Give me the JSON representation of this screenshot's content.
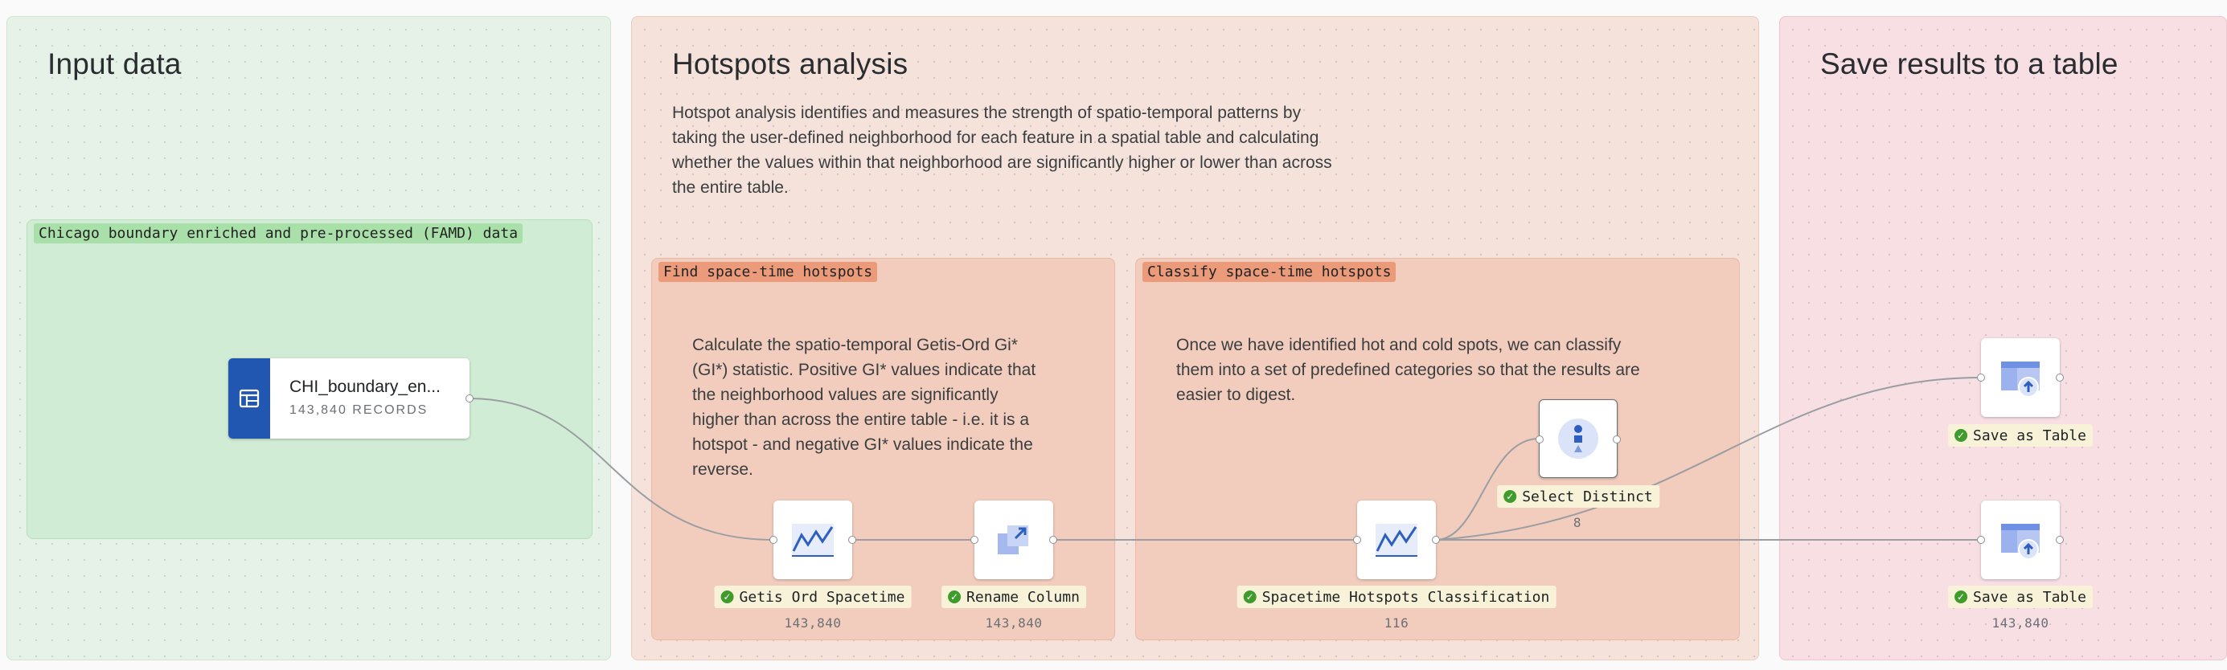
{
  "sections": {
    "input": {
      "title": "Input data"
    },
    "hotspots": {
      "title": "Hotspots analysis",
      "description": [
        "Hotspot analysis identifies and measures the strength of spatio-temporal patterns by",
        "taking the user-defined neighborhood for each feature in a spatial table and calculating",
        "whether the values within that neighborhood are significantly higher or lower than across",
        "the entire table."
      ]
    },
    "save": {
      "title": "Save results to a table"
    }
  },
  "groups": {
    "chicago": {
      "label": "Chicago boundary enriched and pre-processed (FAMD) data"
    },
    "find": {
      "label": "Find space-time hotspots",
      "description": [
        "Calculate the spatio-temporal Getis-Ord Gi*",
        "(GI*) statistic. Positive GI* values indicate that",
        "the neighborhood values are significantly",
        "higher than across the entire table - i.e. it is a",
        "hotspot - and negative GI* values indicate the",
        "reverse."
      ]
    },
    "classify": {
      "label": "Classify space-time hotspots",
      "description": [
        "Once we have identified hot and cold spots, we can classify",
        "them into a set of predefined categories so that the results are",
        "easier to digest."
      ]
    }
  },
  "source": {
    "name": "CHI_boundary_en...",
    "records": "143,840 RECORDS",
    "icon": "table-icon"
  },
  "nodes": {
    "getis": {
      "label": "Getis Ord Spacetime",
      "count": "143,840",
      "icon": "line-chart-icon"
    },
    "rename": {
      "label": "Rename Column",
      "count": "143,840",
      "icon": "rename-icon"
    },
    "spacetime": {
      "label": "Spacetime Hotspots Classification",
      "count": "116",
      "icon": "line-chart-icon"
    },
    "distinct": {
      "label": "Select Distinct",
      "count": "8",
      "icon": "distinct-icon"
    },
    "save1": {
      "label": "Save as Table",
      "count": "",
      "icon": "save-table-icon"
    },
    "save2": {
      "label": "Save as Table",
      "count": "143,840",
      "icon": "save-table-icon"
    }
  },
  "colors": {
    "input_bg": "#e6f2e7",
    "hotspots_bg": "#f5e2db",
    "save_bg": "#f7dfe4",
    "accent_blue": "#2157b0",
    "success_green": "#3f9b2c"
  }
}
